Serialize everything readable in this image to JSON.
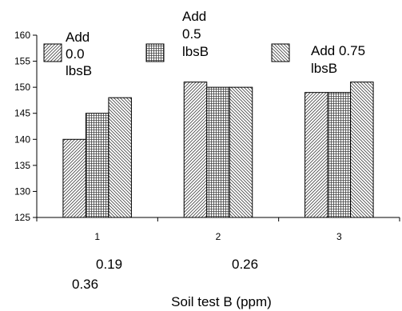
{
  "chart_data": {
    "type": "bar",
    "categories": [
      "1",
      "2",
      "3"
    ],
    "series": [
      {
        "name": "Add 0.0 lbsB",
        "values": [
          140,
          151,
          149
        ]
      },
      {
        "name": "Add 0.5 lbsB",
        "values": [
          145,
          150,
          149
        ]
      },
      {
        "name": "Add 0.75 lbsB",
        "values": [
          148,
          150,
          151
        ]
      }
    ],
    "yticks": [
      125,
      130,
      135,
      140,
      145,
      150,
      155,
      160
    ],
    "ylim": [
      125,
      160
    ],
    "xlabel": "Soil test B (ppm)",
    "category_values": [
      "0.19",
      "0.26",
      "0.36"
    ],
    "legend": {
      "placement": "top",
      "entries": [
        {
          "lines": [
            "Add",
            "0.0",
            "lbsB"
          ]
        },
        {
          "lines": [
            "Add",
            "0.5",
            "lbsB"
          ]
        },
        {
          "lines": [
            "Add 0.75",
            "lbsB"
          ]
        }
      ]
    },
    "grid": false
  }
}
